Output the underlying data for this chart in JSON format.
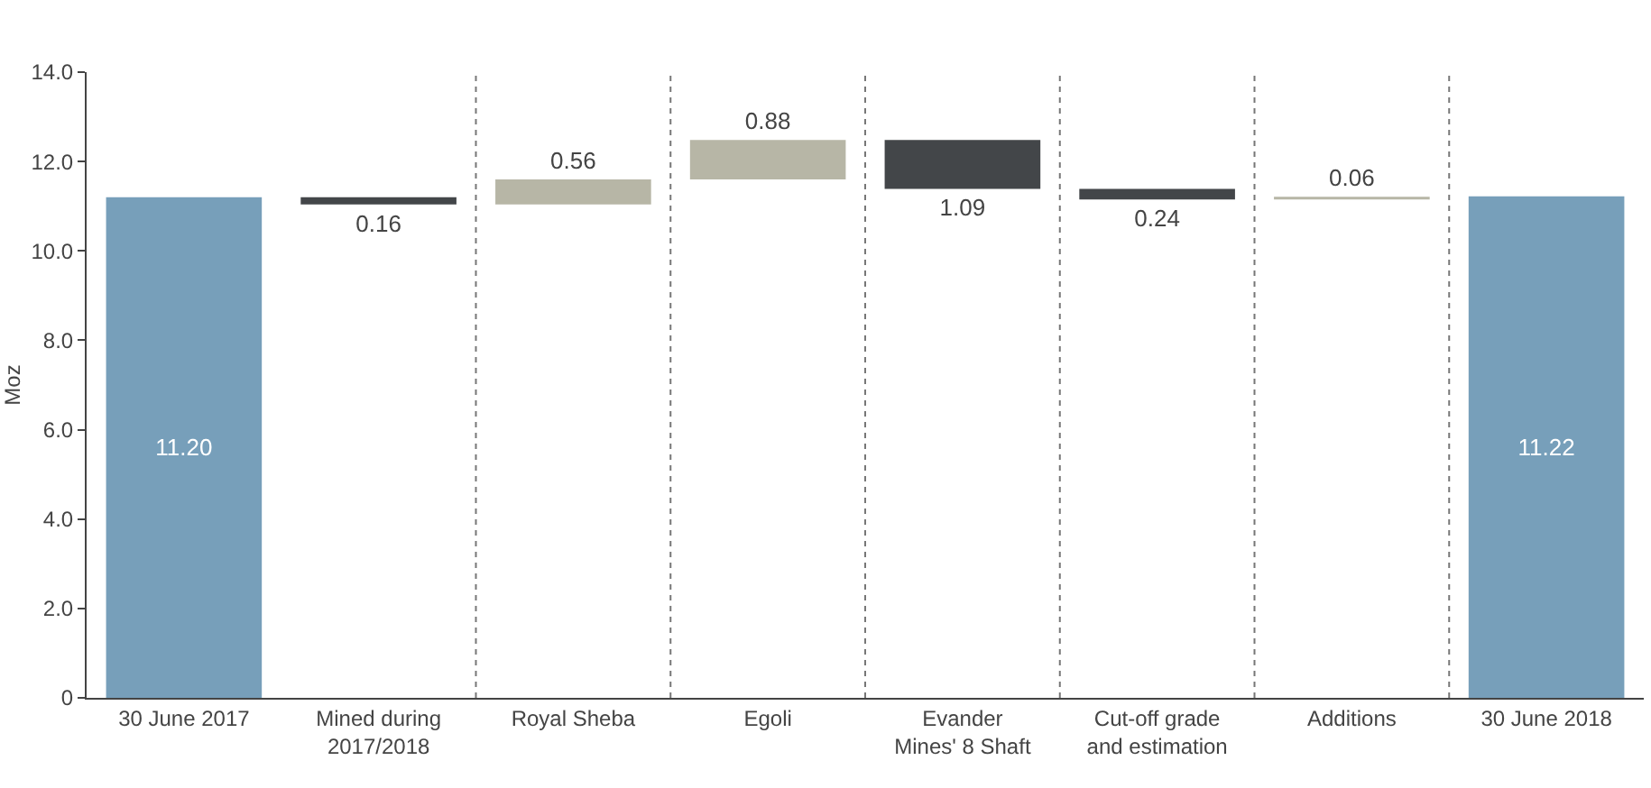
{
  "chart_data": {
    "type": "bar",
    "ylabel": "Moz",
    "categories": [
      "30 June 2017",
      "Mined during 2017/2018",
      "Royal Sheba",
      "Egoli",
      "Evander Mines' 8 Shaft",
      "Cut-off grade and estimation",
      "Additions",
      "30 June 2018"
    ],
    "values": [
      11.2,
      -0.16,
      0.56,
      0.88,
      -1.09,
      -0.24,
      0.06,
      11.22
    ],
    "base": [
      0,
      11.2,
      11.04,
      11.6,
      12.48,
      11.39,
      11.15,
      0
    ],
    "colors": [
      "#779fba",
      "#434649",
      "#b7b6a6",
      "#b7b6a6",
      "#434649",
      "#434649",
      "#b7b6a6",
      "#779fba"
    ],
    "value_labels": [
      "11.20",
      "0.16",
      "0.56",
      "0.88",
      "1.09",
      "0.24",
      "0.06",
      "11.22"
    ],
    "ylim": [
      0,
      14
    ],
    "yticks": [
      0,
      {
        "value": 2,
        "label": "2.0"
      },
      {
        "value": 4,
        "label": "4.0"
      },
      {
        "value": 6,
        "label": "6.0"
      },
      {
        "value": 8,
        "label": "8.0"
      },
      {
        "value": 10,
        "label": "10.0"
      },
      {
        "value": 12,
        "label": "12.0"
      },
      {
        "value": 14,
        "label": "14.0"
      }
    ],
    "grid": false,
    "legend": false
  }
}
